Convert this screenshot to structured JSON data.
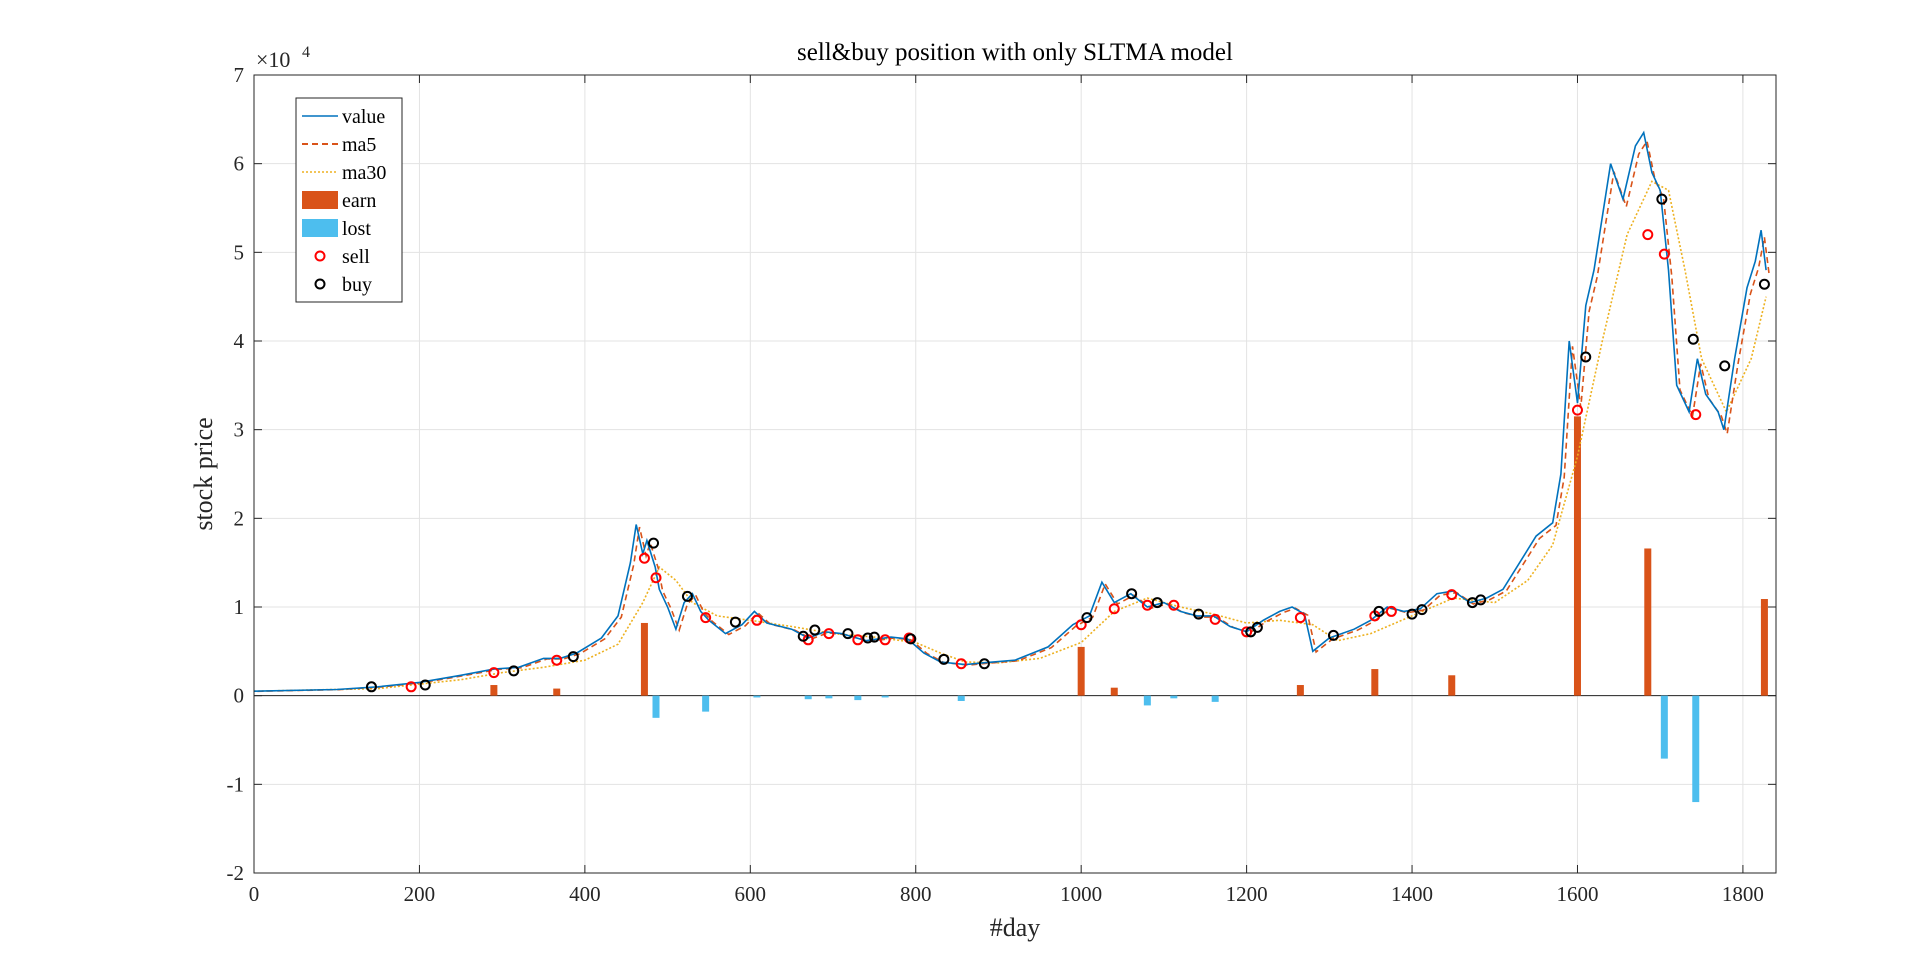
{
  "chart_data": {
    "type": "line",
    "title": "sell&buy position with only SLTMA model",
    "xlabel": "#day",
    "ylabel": "stock price",
    "y_exponent_base": "×10",
    "y_exponent_power": "4",
    "xlim": [
      0,
      1840
    ],
    "ylim": [
      -2,
      7
    ],
    "xticks": [
      0,
      200,
      400,
      600,
      800,
      1000,
      1200,
      1400,
      1600,
      1800
    ],
    "yticks": [
      -2,
      -1,
      0,
      1,
      2,
      3,
      4,
      5,
      6,
      7
    ],
    "grid": true,
    "legend_position": "top-left",
    "legend": [
      "value",
      "ma5",
      "ma30",
      "earn",
      "lost",
      "sell",
      "buy"
    ],
    "colors": {
      "value": "#0072BD",
      "ma5": "#D95319",
      "ma30": "#EDB120",
      "earn": "#D95319",
      "lost": "#4DBEEE",
      "sell": "#FF0000",
      "buy": "#000000"
    },
    "value_points": [
      [
        0,
        0.05
      ],
      [
        100,
        0.07
      ],
      [
        150,
        0.1
      ],
      [
        200,
        0.15
      ],
      [
        250,
        0.23
      ],
      [
        290,
        0.3
      ],
      [
        320,
        0.32
      ],
      [
        350,
        0.42
      ],
      [
        370,
        0.42
      ],
      [
        390,
        0.48
      ],
      [
        420,
        0.65
      ],
      [
        440,
        0.9
      ],
      [
        455,
        1.5
      ],
      [
        462,
        1.93
      ],
      [
        470,
        1.6
      ],
      [
        475,
        1.75
      ],
      [
        485,
        1.45
      ],
      [
        490,
        1.2
      ],
      [
        500,
        1.0
      ],
      [
        510,
        0.75
      ],
      [
        520,
        1.05
      ],
      [
        530,
        1.15
      ],
      [
        540,
        0.95
      ],
      [
        550,
        0.85
      ],
      [
        570,
        0.7
      ],
      [
        590,
        0.8
      ],
      [
        605,
        0.95
      ],
      [
        620,
        0.82
      ],
      [
        650,
        0.75
      ],
      [
        670,
        0.65
      ],
      [
        690,
        0.72
      ],
      [
        710,
        0.7
      ],
      [
        740,
        0.62
      ],
      [
        770,
        0.66
      ],
      [
        790,
        0.64
      ],
      [
        810,
        0.48
      ],
      [
        830,
        0.38
      ],
      [
        860,
        0.35
      ],
      [
        880,
        0.37
      ],
      [
        920,
        0.4
      ],
      [
        960,
        0.55
      ],
      [
        990,
        0.8
      ],
      [
        1010,
        0.9
      ],
      [
        1025,
        1.28
      ],
      [
        1040,
        1.05
      ],
      [
        1060,
        1.15
      ],
      [
        1080,
        1.0
      ],
      [
        1100,
        1.05
      ],
      [
        1120,
        0.95
      ],
      [
        1140,
        0.9
      ],
      [
        1160,
        0.9
      ],
      [
        1180,
        0.78
      ],
      [
        1200,
        0.72
      ],
      [
        1220,
        0.85
      ],
      [
        1240,
        0.95
      ],
      [
        1255,
        1.0
      ],
      [
        1270,
        0.92
      ],
      [
        1280,
        0.5
      ],
      [
        1300,
        0.65
      ],
      [
        1330,
        0.75
      ],
      [
        1350,
        0.85
      ],
      [
        1370,
        1.0
      ],
      [
        1390,
        0.95
      ],
      [
        1410,
        0.98
      ],
      [
        1430,
        1.15
      ],
      [
        1450,
        1.18
      ],
      [
        1470,
        1.05
      ],
      [
        1490,
        1.1
      ],
      [
        1510,
        1.2
      ],
      [
        1530,
        1.5
      ],
      [
        1550,
        1.8
      ],
      [
        1570,
        1.95
      ],
      [
        1580,
        2.5
      ],
      [
        1590,
        4.0
      ],
      [
        1600,
        3.3
      ],
      [
        1610,
        4.4
      ],
      [
        1620,
        4.8
      ],
      [
        1640,
        6.0
      ],
      [
        1655,
        5.6
      ],
      [
        1670,
        6.2
      ],
      [
        1680,
        6.35
      ],
      [
        1690,
        5.9
      ],
      [
        1700,
        5.7
      ],
      [
        1710,
        4.8
      ],
      [
        1720,
        3.5
      ],
      [
        1735,
        3.2
      ],
      [
        1745,
        3.8
      ],
      [
        1755,
        3.4
      ],
      [
        1770,
        3.2
      ],
      [
        1777,
        3.0
      ],
      [
        1790,
        3.8
      ],
      [
        1805,
        4.6
      ],
      [
        1815,
        4.9
      ],
      [
        1822,
        5.25
      ],
      [
        1828,
        4.8
      ]
    ],
    "ma30_points": [
      [
        0,
        0.05
      ],
      [
        150,
        0.08
      ],
      [
        250,
        0.18
      ],
      [
        300,
        0.26
      ],
      [
        350,
        0.32
      ],
      [
        400,
        0.4
      ],
      [
        440,
        0.58
      ],
      [
        470,
        1.05
      ],
      [
        490,
        1.45
      ],
      [
        510,
        1.3
      ],
      [
        530,
        1.05
      ],
      [
        560,
        0.9
      ],
      [
        600,
        0.85
      ],
      [
        650,
        0.78
      ],
      [
        700,
        0.7
      ],
      [
        750,
        0.66
      ],
      [
        800,
        0.6
      ],
      [
        830,
        0.48
      ],
      [
        860,
        0.38
      ],
      [
        900,
        0.37
      ],
      [
        950,
        0.42
      ],
      [
        1000,
        0.6
      ],
      [
        1040,
        0.95
      ],
      [
        1080,
        1.1
      ],
      [
        1120,
        1.0
      ],
      [
        1160,
        0.92
      ],
      [
        1200,
        0.82
      ],
      [
        1240,
        0.85
      ],
      [
        1280,
        0.8
      ],
      [
        1310,
        0.62
      ],
      [
        1350,
        0.7
      ],
      [
        1400,
        0.9
      ],
      [
        1450,
        1.1
      ],
      [
        1500,
        1.05
      ],
      [
        1540,
        1.3
      ],
      [
        1570,
        1.7
      ],
      [
        1600,
        2.7
      ],
      [
        1630,
        4.0
      ],
      [
        1660,
        5.2
      ],
      [
        1690,
        5.8
      ],
      [
        1710,
        5.7
      ],
      [
        1730,
        4.8
      ],
      [
        1750,
        3.8
      ],
      [
        1780,
        3.2
      ],
      [
        1810,
        3.8
      ],
      [
        1828,
        4.5
      ]
    ],
    "sell_points": [
      [
        190,
        0.1
      ],
      [
        290,
        0.26
      ],
      [
        366,
        0.4
      ],
      [
        472,
        1.55
      ],
      [
        486,
        1.33
      ],
      [
        546,
        0.88
      ],
      [
        608,
        0.85
      ],
      [
        670,
        0.63
      ],
      [
        695,
        0.7
      ],
      [
        730,
        0.63
      ],
      [
        763,
        0.63
      ],
      [
        792,
        0.65
      ],
      [
        855,
        0.36
      ],
      [
        1000,
        0.8
      ],
      [
        1040,
        0.98
      ],
      [
        1080,
        1.02
      ],
      [
        1112,
        1.02
      ],
      [
        1162,
        0.86
      ],
      [
        1200,
        0.72
      ],
      [
        1265,
        0.88
      ],
      [
        1355,
        0.9
      ],
      [
        1375,
        0.95
      ],
      [
        1448,
        1.14
      ],
      [
        1600,
        3.22
      ],
      [
        1685,
        5.2
      ],
      [
        1705,
        4.98
      ],
      [
        1743,
        3.17
      ]
    ],
    "buy_points": [
      [
        142,
        0.1
      ],
      [
        207,
        0.12
      ],
      [
        314,
        0.28
      ],
      [
        386,
        0.44
      ],
      [
        483,
        1.72
      ],
      [
        524,
        1.12
      ],
      [
        582,
        0.83
      ],
      [
        664,
        0.67
      ],
      [
        678,
        0.74
      ],
      [
        718,
        0.7
      ],
      [
        742,
        0.65
      ],
      [
        750,
        0.66
      ],
      [
        794,
        0.64
      ],
      [
        834,
        0.41
      ],
      [
        883,
        0.36
      ],
      [
        1007,
        0.88
      ],
      [
        1061,
        1.15
      ],
      [
        1092,
        1.05
      ],
      [
        1142,
        0.92
      ],
      [
        1205,
        0.72
      ],
      [
        1213,
        0.77
      ],
      [
        1305,
        0.68
      ],
      [
        1360,
        0.95
      ],
      [
        1400,
        0.92
      ],
      [
        1412,
        0.97
      ],
      [
        1473,
        1.05
      ],
      [
        1483,
        1.08
      ],
      [
        1610,
        3.82
      ],
      [
        1702,
        5.6
      ],
      [
        1740,
        4.02
      ],
      [
        1778,
        3.72
      ],
      [
        1826,
        4.64
      ]
    ],
    "earn_bars": [
      [
        290,
        0.12
      ],
      [
        366,
        0.08
      ],
      [
        472,
        0.82
      ],
      [
        1000,
        0.55
      ],
      [
        1040,
        0.09
      ],
      [
        1265,
        0.12
      ],
      [
        1355,
        0.3
      ],
      [
        1448,
        0.23
      ],
      [
        1600,
        3.15
      ],
      [
        1685,
        1.66
      ],
      [
        1826,
        1.09
      ]
    ],
    "lost_bars": [
      [
        486,
        -0.25
      ],
      [
        546,
        -0.18
      ],
      [
        608,
        -0.02
      ],
      [
        670,
        -0.04
      ],
      [
        695,
        -0.03
      ],
      [
        730,
        -0.05
      ],
      [
        763,
        -0.02
      ],
      [
        855,
        -0.06
      ],
      [
        1080,
        -0.11
      ],
      [
        1112,
        -0.03
      ],
      [
        1162,
        -0.07
      ],
      [
        1705,
        -0.71
      ],
      [
        1743,
        -1.2
      ]
    ]
  }
}
